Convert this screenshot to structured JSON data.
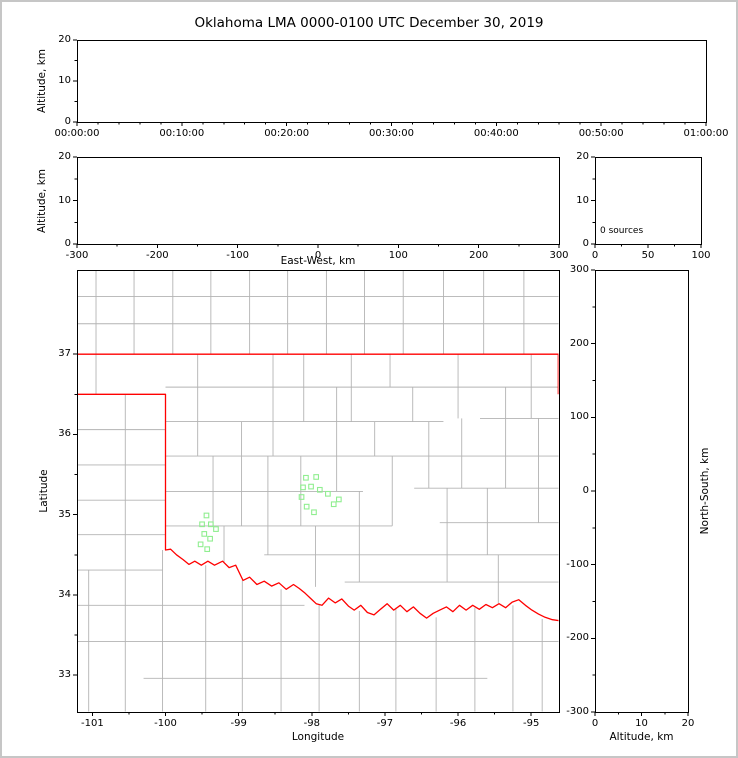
{
  "title": "Oklahoma LMA 0000-0100 UTC December 30, 2019",
  "colors": {
    "background": "#ffffff",
    "frame_border": "#c6c6c6",
    "axis": "#000000",
    "state_border": "#ff0000",
    "county_lines": "#b3b3b3",
    "station_marker": "#90ee90"
  },
  "chart_data": [
    {
      "id": "time-height",
      "type": "scatter",
      "xlabel": "",
      "ylabel": "Altitude, km",
      "xlim": [
        0,
        3600
      ],
      "xticks": [
        0,
        600,
        1200,
        1800,
        2400,
        3000,
        3600
      ],
      "xtick_labels": [
        "00:00:00",
        "00:10:00",
        "00:20:00",
        "00:30:00",
        "00:40:00",
        "00:50:00",
        "01:00:00"
      ],
      "ylim": [
        0,
        20
      ],
      "yticks": [
        0,
        10,
        20
      ],
      "points": []
    },
    {
      "id": "ew-height",
      "type": "scatter",
      "xlabel": "East-West, km",
      "ylabel": "Altitude, km",
      "xlim": [
        -300,
        300
      ],
      "xticks": [
        -300,
        -200,
        -100,
        0,
        100,
        200,
        300
      ],
      "ylim": [
        0,
        20
      ],
      "yticks": [
        0,
        10,
        20
      ],
      "points": []
    },
    {
      "id": "alt-hist",
      "type": "line",
      "annotation": "0 sources",
      "xlim": [
        0,
        100
      ],
      "xticks": [
        0,
        50,
        100
      ],
      "ylim": [
        0,
        20
      ],
      "yticks": [
        0,
        10,
        20
      ],
      "points": []
    },
    {
      "id": "plan-view",
      "type": "scatter",
      "xlabel": "Longitude",
      "ylabel": "Latitude",
      "xlim": [
        -101.21,
        -94.62
      ],
      "xticks": [
        -101,
        -100,
        -99,
        -98,
        -97,
        -96,
        -95
      ],
      "ylim": [
        32.54,
        38.05
      ],
      "yticks": [
        33,
        34,
        35,
        36,
        37
      ],
      "stations": [
        [
          -99.44,
          34.99
        ],
        [
          -99.5,
          34.88
        ],
        [
          -99.38,
          34.88
        ],
        [
          -99.31,
          34.82
        ],
        [
          -99.47,
          34.76
        ],
        [
          -99.39,
          34.7
        ],
        [
          -99.52,
          34.63
        ],
        [
          -99.43,
          34.57
        ],
        [
          -98.08,
          35.46
        ],
        [
          -97.94,
          35.47
        ],
        [
          -98.12,
          35.34
        ],
        [
          -98.01,
          35.35
        ],
        [
          -97.89,
          35.31
        ],
        [
          -98.14,
          35.22
        ],
        [
          -97.78,
          35.26
        ],
        [
          -97.63,
          35.19
        ],
        [
          -98.07,
          35.1
        ],
        [
          -97.97,
          35.03
        ],
        [
          -97.7,
          35.13
        ]
      ],
      "state_border": [
        [
          [
            -101.21,
            37.0
          ],
          [
            -94.62,
            37.0
          ]
        ],
        [
          [
            -94.63,
            37.0
          ],
          [
            -94.63,
            36.5
          ]
        ],
        [
          [
            -101.21,
            36.5
          ],
          [
            -100.0,
            36.5
          ],
          [
            -100.0,
            34.56
          ],
          [
            -99.93,
            34.57
          ],
          [
            -99.85,
            34.5
          ],
          [
            -99.76,
            34.44
          ],
          [
            -99.68,
            34.38
          ],
          [
            -99.6,
            34.42
          ],
          [
            -99.51,
            34.37
          ],
          [
            -99.42,
            34.42
          ],
          [
            -99.33,
            34.37
          ],
          [
            -99.22,
            34.42
          ],
          [
            -99.13,
            34.34
          ],
          [
            -99.04,
            34.37
          ],
          [
            -98.94,
            34.18
          ],
          [
            -98.85,
            34.22
          ],
          [
            -98.75,
            34.13
          ],
          [
            -98.65,
            34.17
          ],
          [
            -98.55,
            34.11
          ],
          [
            -98.45,
            34.15
          ],
          [
            -98.35,
            34.07
          ],
          [
            -98.25,
            34.13
          ],
          [
            -98.17,
            34.08
          ],
          [
            -98.09,
            34.02
          ],
          [
            -98.01,
            33.95
          ],
          [
            -97.94,
            33.89
          ],
          [
            -97.86,
            33.87
          ],
          [
            -97.77,
            33.96
          ],
          [
            -97.68,
            33.9
          ],
          [
            -97.59,
            33.95
          ],
          [
            -97.5,
            33.86
          ],
          [
            -97.42,
            33.81
          ],
          [
            -97.33,
            33.87
          ],
          [
            -97.24,
            33.78
          ],
          [
            -97.15,
            33.75
          ],
          [
            -97.06,
            33.82
          ],
          [
            -96.97,
            33.89
          ],
          [
            -96.88,
            33.81
          ],
          [
            -96.79,
            33.87
          ],
          [
            -96.7,
            33.79
          ],
          [
            -96.61,
            33.85
          ],
          [
            -96.52,
            33.77
          ],
          [
            -96.43,
            33.71
          ],
          [
            -96.34,
            33.77
          ],
          [
            -96.25,
            33.81
          ],
          [
            -96.16,
            33.85
          ],
          [
            -96.07,
            33.79
          ],
          [
            -95.98,
            33.87
          ],
          [
            -95.89,
            33.81
          ],
          [
            -95.8,
            33.87
          ],
          [
            -95.71,
            33.82
          ],
          [
            -95.62,
            33.88
          ],
          [
            -95.53,
            33.84
          ],
          [
            -95.44,
            33.89
          ],
          [
            -95.35,
            33.84
          ],
          [
            -95.26,
            33.91
          ],
          [
            -95.17,
            33.94
          ],
          [
            -95.08,
            33.87
          ],
          [
            -94.99,
            33.81
          ],
          [
            -94.9,
            33.76
          ],
          [
            -94.81,
            33.72
          ],
          [
            -94.71,
            33.69
          ],
          [
            -94.62,
            33.68
          ]
        ]
      ],
      "county_h": [
        [
          37.38,
          -101.21,
          -94.62
        ],
        [
          37.72,
          -101.21,
          -94.62
        ],
        [
          36.59,
          -100.0,
          -94.62
        ],
        [
          36.16,
          -100.0,
          -96.2
        ],
        [
          36.2,
          -95.7,
          -94.62
        ],
        [
          35.73,
          -100.0,
          -94.62
        ],
        [
          35.29,
          -100.0,
          -97.3
        ],
        [
          35.33,
          -96.6,
          -94.62
        ],
        [
          34.86,
          -100.0,
          -96.9
        ],
        [
          34.9,
          -96.25,
          -94.62
        ],
        [
          34.5,
          -98.65,
          -94.62
        ],
        [
          34.16,
          -97.55,
          -94.62
        ],
        [
          36.06,
          -101.21,
          -100.0
        ],
        [
          35.62,
          -101.21,
          -100.0
        ],
        [
          35.18,
          -101.21,
          -100.0
        ],
        [
          34.75,
          -101.21,
          -100.0
        ],
        [
          34.31,
          -101.21,
          -100.04
        ],
        [
          33.87,
          -101.21,
          -98.1
        ],
        [
          33.42,
          -101.21,
          -94.62
        ],
        [
          32.96,
          -100.3,
          -95.6
        ]
      ],
      "county_v": [
        [
          -100.95,
          37.0,
          38.05
        ],
        [
          -100.43,
          37.0,
          38.05
        ],
        [
          -99.9,
          37.0,
          38.05
        ],
        [
          -99.38,
          37.0,
          38.05
        ],
        [
          -98.85,
          37.0,
          38.05
        ],
        [
          -98.33,
          37.0,
          38.05
        ],
        [
          -97.8,
          37.0,
          38.05
        ],
        [
          -97.28,
          37.0,
          38.05
        ],
        [
          -96.75,
          37.0,
          38.05
        ],
        [
          -96.2,
          37.0,
          38.05
        ],
        [
          -95.65,
          37.0,
          38.05
        ],
        [
          -95.1,
          37.0,
          38.05
        ],
        [
          -100.95,
          36.5,
          37.0
        ],
        [
          -100.55,
          32.54,
          36.5
        ],
        [
          -101.05,
          32.54,
          34.31
        ],
        [
          -100.04,
          32.54,
          34.56
        ],
        [
          -99.45,
          32.54,
          34.37
        ],
        [
          -98.95,
          32.54,
          34.18
        ],
        [
          -98.42,
          32.54,
          34.07
        ],
        [
          -97.9,
          32.54,
          33.88
        ],
        [
          -97.35,
          32.54,
          33.8
        ],
        [
          -96.85,
          32.54,
          33.84
        ],
        [
          -96.3,
          32.54,
          33.72
        ],
        [
          -95.77,
          32.54,
          33.84
        ],
        [
          -95.25,
          32.54,
          33.87
        ],
        [
          -94.85,
          32.54,
          33.7
        ],
        [
          -99.56,
          35.73,
          37.0
        ],
        [
          -99.35,
          34.86,
          35.73
        ],
        [
          -99.2,
          34.4,
          34.86
        ],
        [
          -98.96,
          34.86,
          36.16
        ],
        [
          -98.53,
          35.73,
          37.0
        ],
        [
          -98.6,
          34.5,
          35.73
        ],
        [
          -98.11,
          36.16,
          37.0
        ],
        [
          -98.15,
          34.86,
          35.73
        ],
        [
          -97.95,
          34.1,
          34.86
        ],
        [
          -97.66,
          35.29,
          36.59
        ],
        [
          -97.46,
          36.16,
          37.0
        ],
        [
          -97.35,
          34.16,
          35.29
        ],
        [
          -97.14,
          35.73,
          36.16
        ],
        [
          -96.93,
          36.59,
          37.0
        ],
        [
          -96.62,
          36.16,
          36.59
        ],
        [
          -96.9,
          34.86,
          35.73
        ],
        [
          -96.4,
          35.33,
          36.16
        ],
        [
          -96.15,
          34.16,
          35.33
        ],
        [
          -96.0,
          36.2,
          37.0
        ],
        [
          -95.95,
          35.33,
          36.2
        ],
        [
          -95.6,
          34.5,
          35.33
        ],
        [
          -95.35,
          35.33,
          36.59
        ],
        [
          -95.0,
          36.2,
          37.0
        ],
        [
          -94.9,
          34.9,
          36.2
        ],
        [
          -95.45,
          33.9,
          34.5
        ]
      ]
    },
    {
      "id": "ns-height",
      "type": "scatter",
      "xlabel": "Altitude, km",
      "ylabel": "North-South, km",
      "xlim": [
        0,
        20
      ],
      "xticks": [
        0,
        10,
        20
      ],
      "ylim": [
        -300,
        300
      ],
      "yticks": [
        -300,
        -200,
        -100,
        0,
        100,
        200,
        300
      ],
      "points": []
    }
  ]
}
